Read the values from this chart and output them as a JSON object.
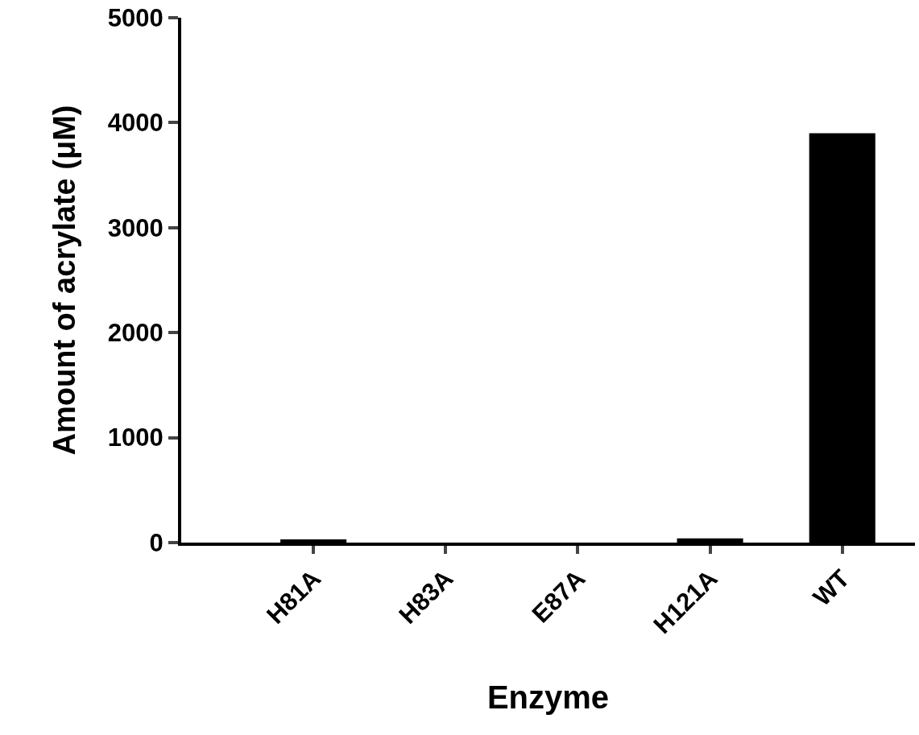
{
  "chart_data": {
    "type": "bar",
    "xlabel": "Enzyme",
    "ylabel": "Amount of acrylate (μM)",
    "categories": [
      "H81A",
      "H83A",
      "E87A",
      "H121A",
      "WT"
    ],
    "values": [
      30,
      0,
      0,
      40,
      3900
    ],
    "color": "#000000",
    "ylim": [
      0,
      5000
    ],
    "yticks": [
      0,
      1000,
      2000,
      3000,
      4000,
      5000
    ],
    "grid": false
  }
}
